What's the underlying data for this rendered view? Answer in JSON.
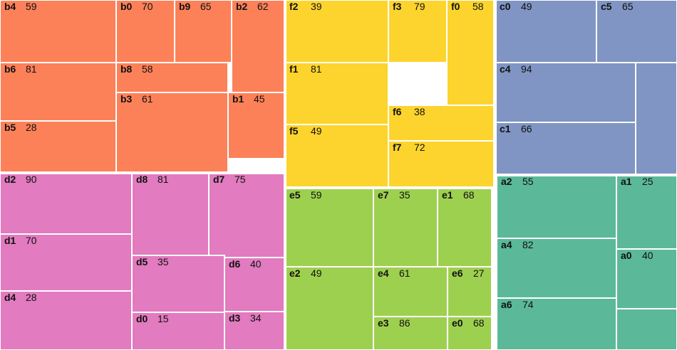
{
  "chart_data": {
    "type": "treemap",
    "group_colors": {
      "a": "#5bb999",
      "b": "#fc8159",
      "c": "#8095c3",
      "d": "#e27bbf",
      "e": "#9ed04f",
      "f": "#fcd42d"
    },
    "groups": [
      {
        "name": "b",
        "color": "#fc8159",
        "items": [
          {
            "name": "b4",
            "value": 59
          },
          {
            "name": "b0",
            "value": 70
          },
          {
            "name": "b9",
            "value": 65
          },
          {
            "name": "b2",
            "value": 62
          },
          {
            "name": "b6",
            "value": 81
          },
          {
            "name": "b8",
            "value": 58
          },
          {
            "name": "b1",
            "value": 45
          },
          {
            "name": "b5",
            "value": 28
          },
          {
            "name": "b3",
            "value": 61
          }
        ]
      },
      {
        "name": "f",
        "color": "#fcd42d",
        "items": [
          {
            "name": "f2",
            "value": 39
          },
          {
            "name": "f3",
            "value": 79
          },
          {
            "name": "f0",
            "value": 58
          },
          {
            "name": "f1",
            "value": 81
          },
          {
            "name": "f6",
            "value": 38
          },
          {
            "name": "f5",
            "value": 49
          },
          {
            "name": "f7",
            "value": 72
          }
        ]
      },
      {
        "name": "c",
        "color": "#8095c3",
        "items": [
          {
            "name": "c0",
            "value": 49
          },
          {
            "name": "c5",
            "value": 65
          },
          {
            "name": "c4",
            "value": 94
          },
          {
            "name": "c1",
            "value": 66
          }
        ]
      },
      {
        "name": "d",
        "color": "#e27bbf",
        "items": [
          {
            "name": "d2",
            "value": 90
          },
          {
            "name": "d8",
            "value": 81
          },
          {
            "name": "d7",
            "value": 75
          },
          {
            "name": "d1",
            "value": 70
          },
          {
            "name": "d5",
            "value": 35
          },
          {
            "name": "d6",
            "value": 40
          },
          {
            "name": "d4",
            "value": 28
          },
          {
            "name": "d3",
            "value": 34
          },
          {
            "name": "d0",
            "value": 15
          }
        ]
      },
      {
        "name": "e",
        "color": "#9ed04f",
        "items": [
          {
            "name": "e5",
            "value": 59
          },
          {
            "name": "e7",
            "value": 35
          },
          {
            "name": "e1",
            "value": 68
          },
          {
            "name": "e4",
            "value": 61
          },
          {
            "name": "e6",
            "value": 27
          },
          {
            "name": "e2",
            "value": 49
          },
          {
            "name": "e3",
            "value": 86
          },
          {
            "name": "e0",
            "value": 68
          }
        ]
      },
      {
        "name": "a",
        "color": "#5bb999",
        "items": [
          {
            "name": "a2",
            "value": 55
          },
          {
            "name": "a1",
            "value": 25
          },
          {
            "name": "a4",
            "value": 82
          },
          {
            "name": "a0",
            "value": 40
          },
          {
            "name": "a6",
            "value": 74
          }
        ]
      }
    ]
  }
}
